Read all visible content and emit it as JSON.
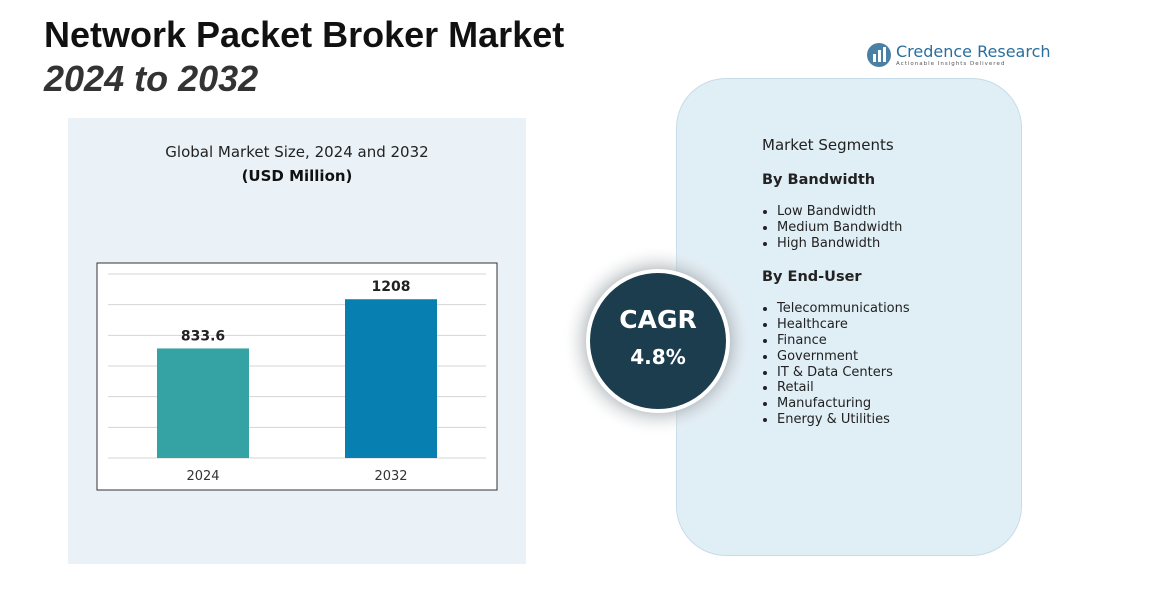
{
  "header": {
    "title": "Network Packet Broker Market",
    "subtitle": "2024 to 2032"
  },
  "logo": {
    "name": "Credence Research",
    "tagline": "Actionable Insights Delivered"
  },
  "chart_data": {
    "type": "bar",
    "title": "Global Market Size, 2024 and 2032",
    "subtitle": "(USD Million)",
    "categories": [
      "2024",
      "2032"
    ],
    "values": [
      833.6,
      1208
    ],
    "colors": [
      "#35a3a3",
      "#0780b1"
    ],
    "ylim": [
      0,
      1400
    ],
    "grid": true
  },
  "cagr": {
    "label": "CAGR",
    "value": "4.8%"
  },
  "segments": {
    "title": "Market Segments",
    "groups": [
      {
        "heading": "By Bandwidth",
        "items": [
          "Low Bandwidth",
          "Medium Bandwidth",
          "High Bandwidth"
        ]
      },
      {
        "heading": "By End-User",
        "items": [
          "Telecommunications",
          "Healthcare",
          "Finance",
          "Government",
          "IT & Data Centers",
          "Retail",
          "Manufacturing",
          "Energy & Utilities"
        ]
      }
    ]
  }
}
